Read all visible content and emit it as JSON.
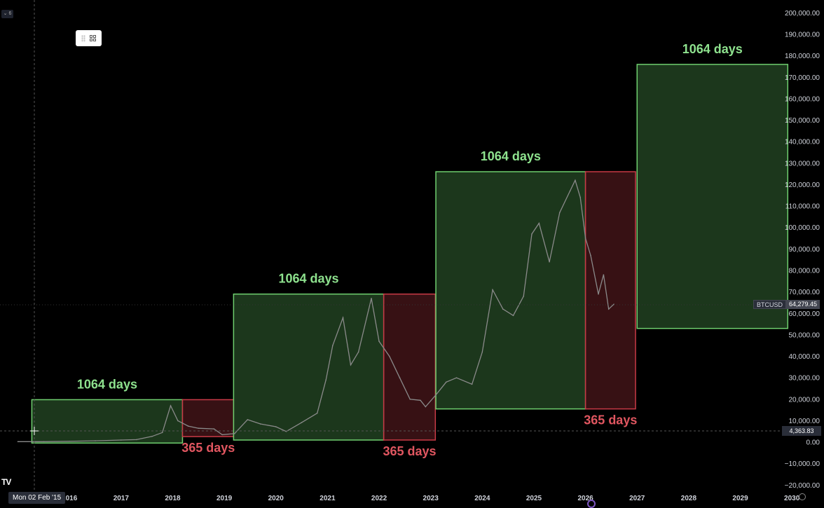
{
  "app": {
    "interval_tag": "⌄ 6",
    "crosshair_date": "Mon 02 Feb '15",
    "logo_text": "TV"
  },
  "colors": {
    "bull_fill": "#1e3a1e",
    "bull_stroke": "#6fcf6f",
    "bull_text": "#8ee28e",
    "bear_fill": "#3a1215",
    "bear_stroke": "#c83a46",
    "bear_text": "#e05660",
    "price_line": "#8a8a8a"
  },
  "price_tag": {
    "symbol": "BTCUSD",
    "value": "64,279.45"
  },
  "cross_tag": {
    "value": "4,363.83"
  },
  "chart_data": {
    "type": "line",
    "title": "",
    "xlabel": "",
    "ylabel": "",
    "xlim": [
      2015.4,
      2030.5
    ],
    "ylim": [
      -22500,
      206000
    ],
    "grid": false,
    "y_ticks": [
      -20000,
      -10000,
      0,
      10000,
      20000,
      30000,
      40000,
      50000,
      60000,
      70000,
      80000,
      90000,
      100000,
      110000,
      120000,
      130000,
      140000,
      150000,
      160000,
      170000,
      180000,
      190000,
      200000
    ],
    "y_tick_labels": [
      "−20,000.00",
      "−10,000.00",
      "0.00",
      "10,000.00",
      "20,000.00",
      "30,000.00",
      "40,000.00",
      "50,000.00",
      "60,000.00",
      "70,000.00",
      "80,000.00",
      "90,000.00",
      "100,000.00",
      "110,000.00",
      "120,000.00",
      "130,000.00",
      "140,000.00",
      "150,000.00",
      "160,000.00",
      "170,000.00",
      "180,000.00",
      "190,000.00",
      "200,000.00"
    ],
    "x_ticks": [
      2016,
      2017,
      2018,
      2019,
      2020,
      2021,
      2022,
      2023,
      2024,
      2025,
      2026,
      2027,
      2028,
      2029,
      2030
    ],
    "x_tick_labels": [
      "2016",
      "2017",
      "2018",
      "2019",
      "2020",
      "2021",
      "2022",
      "2023",
      "2024",
      "2025",
      "2026",
      "2027",
      "2028",
      "2029",
      "2030"
    ],
    "series": [
      {
        "x": [
          2015.0,
          2015.5,
          2016.0,
          2016.5,
          2017.0,
          2017.3,
          2017.6,
          2017.8,
          2017.96,
          2018.1,
          2018.3,
          2018.5,
          2018.8,
          2018.96,
          2019.2,
          2019.45,
          2019.7,
          2020.0,
          2020.2,
          2020.5,
          2020.8,
          2020.97,
          2021.1,
          2021.3,
          2021.45,
          2021.6,
          2021.85,
          2022.0,
          2022.2,
          2022.4,
          2022.6,
          2022.8,
          2022.9,
          2023.1,
          2023.3,
          2023.5,
          2023.8,
          2024.0,
          2024.2,
          2024.4,
          2024.6,
          2024.8,
          2024.96,
          2025.1,
          2025.3,
          2025.5,
          2025.7,
          2025.8,
          2025.9,
          2026.0,
          2026.1,
          2026.25,
          2026.35,
          2026.45,
          2026.55
        ],
        "values": [
          250,
          260,
          430,
          650,
          1000,
          1200,
          2700,
          4500,
          17000,
          10000,
          7500,
          6500,
          6200,
          3500,
          4000,
          10500,
          8500,
          7200,
          5000,
          9200,
          13500,
          29000,
          45000,
          58000,
          36000,
          42000,
          67000,
          47000,
          40000,
          30000,
          20000,
          19500,
          16500,
          22000,
          28000,
          30000,
          27000,
          42000,
          71000,
          62000,
          59000,
          68000,
          97000,
          102000,
          84000,
          107000,
          117000,
          122000,
          114000,
          95000,
          87000,
          69000,
          78000,
          62000,
          64279
        ]
      }
    ],
    "boxes": [
      {
        "kind": "bull",
        "x0": 2015.27,
        "x1": 2018.19,
        "y0": -400,
        "y1": 19800,
        "label": "1064 days",
        "label_pos": "above"
      },
      {
        "kind": "bear",
        "x0": 2018.19,
        "x1": 2019.19,
        "y0": 2600,
        "y1": 19800,
        "label": "365 days",
        "label_pos": "below"
      },
      {
        "kind": "bull",
        "x0": 2019.18,
        "x1": 2022.09,
        "y0": 1000,
        "y1": 69000,
        "label": "1064 days",
        "label_pos": "above"
      },
      {
        "kind": "bear",
        "x0": 2022.09,
        "x1": 2023.09,
        "y0": 1000,
        "y1": 69000,
        "label": "365 days",
        "label_pos": "below"
      },
      {
        "kind": "bull",
        "x0": 2023.1,
        "x1": 2026.0,
        "y0": 15500,
        "y1": 126000,
        "label": "1064 days",
        "label_pos": "above"
      },
      {
        "kind": "bear",
        "x0": 2026.0,
        "x1": 2026.97,
        "y0": 15500,
        "y1": 126000,
        "label": "365 days",
        "label_pos": "below"
      },
      {
        "kind": "bull",
        "x0": 2027.0,
        "x1": 2029.92,
        "y0": 53000,
        "y1": 176000,
        "label": "1064 days",
        "label_pos": "above"
      }
    ]
  }
}
